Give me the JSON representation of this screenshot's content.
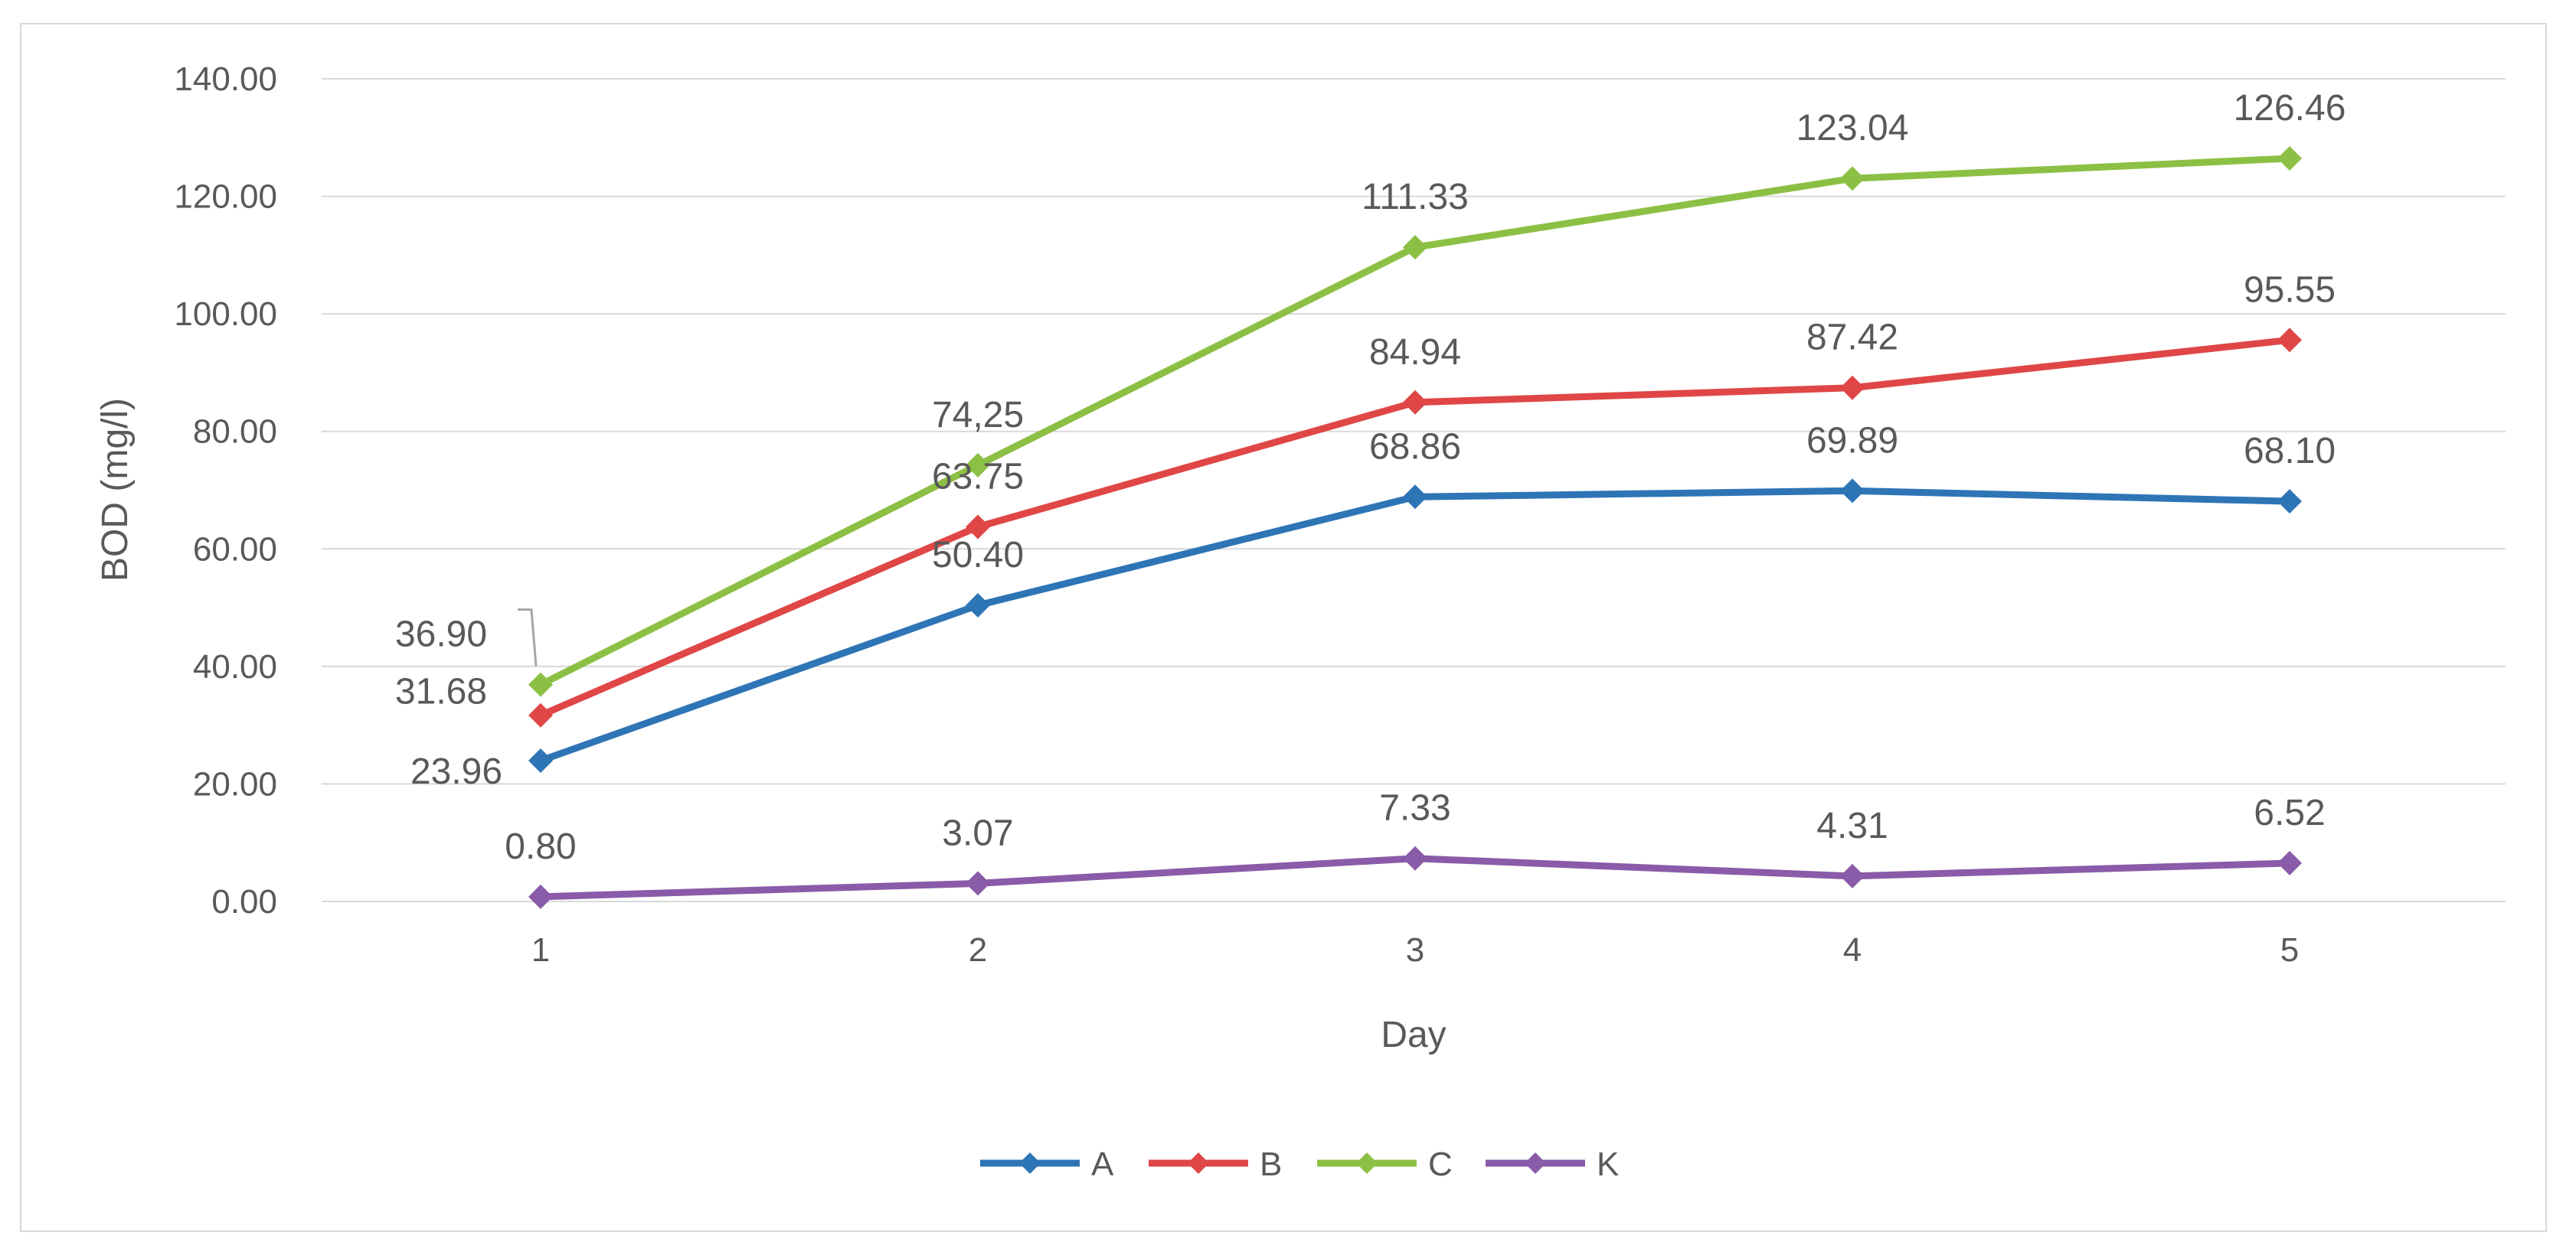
{
  "chart_data": {
    "type": "line",
    "xlabel": "Day",
    "ylabel": "BOD (mg/l)",
    "x": [
      "1",
      "2",
      "3",
      "4",
      "5"
    ],
    "ylim": [
      0,
      140
    ],
    "yticks": [
      "0.00",
      "20.00",
      "40.00",
      "60.00",
      "80.00",
      "100.00",
      "120.00",
      "140.00"
    ],
    "grid": true,
    "legend": "bottom",
    "series": [
      {
        "name": "A",
        "color": "#2e75b6",
        "values": [
          23.96,
          50.4,
          68.86,
          69.89,
          68.1
        ],
        "labels": [
          "23.96",
          "50.40",
          "68.86",
          "69.89",
          "68.10"
        ]
      },
      {
        "name": "B",
        "color": "#e04646",
        "values": [
          31.68,
          63.75,
          84.94,
          87.42,
          95.55
        ],
        "labels": [
          "31.68",
          "63.75",
          "84.94",
          "87.42",
          "95.55"
        ]
      },
      {
        "name": "C",
        "color": "#8cc045",
        "values": [
          36.9,
          74.25,
          111.33,
          123.04,
          126.46
        ],
        "labels": [
          "36.90",
          "74,25",
          "111.33",
          "123.04",
          "126.46"
        ]
      },
      {
        "name": "K",
        "color": "#8a5ba8",
        "values": [
          0.8,
          3.07,
          7.33,
          4.31,
          6.52
        ],
        "labels": [
          "0.80",
          "3.07",
          "7.33",
          "4.31",
          "6.52"
        ]
      }
    ]
  }
}
